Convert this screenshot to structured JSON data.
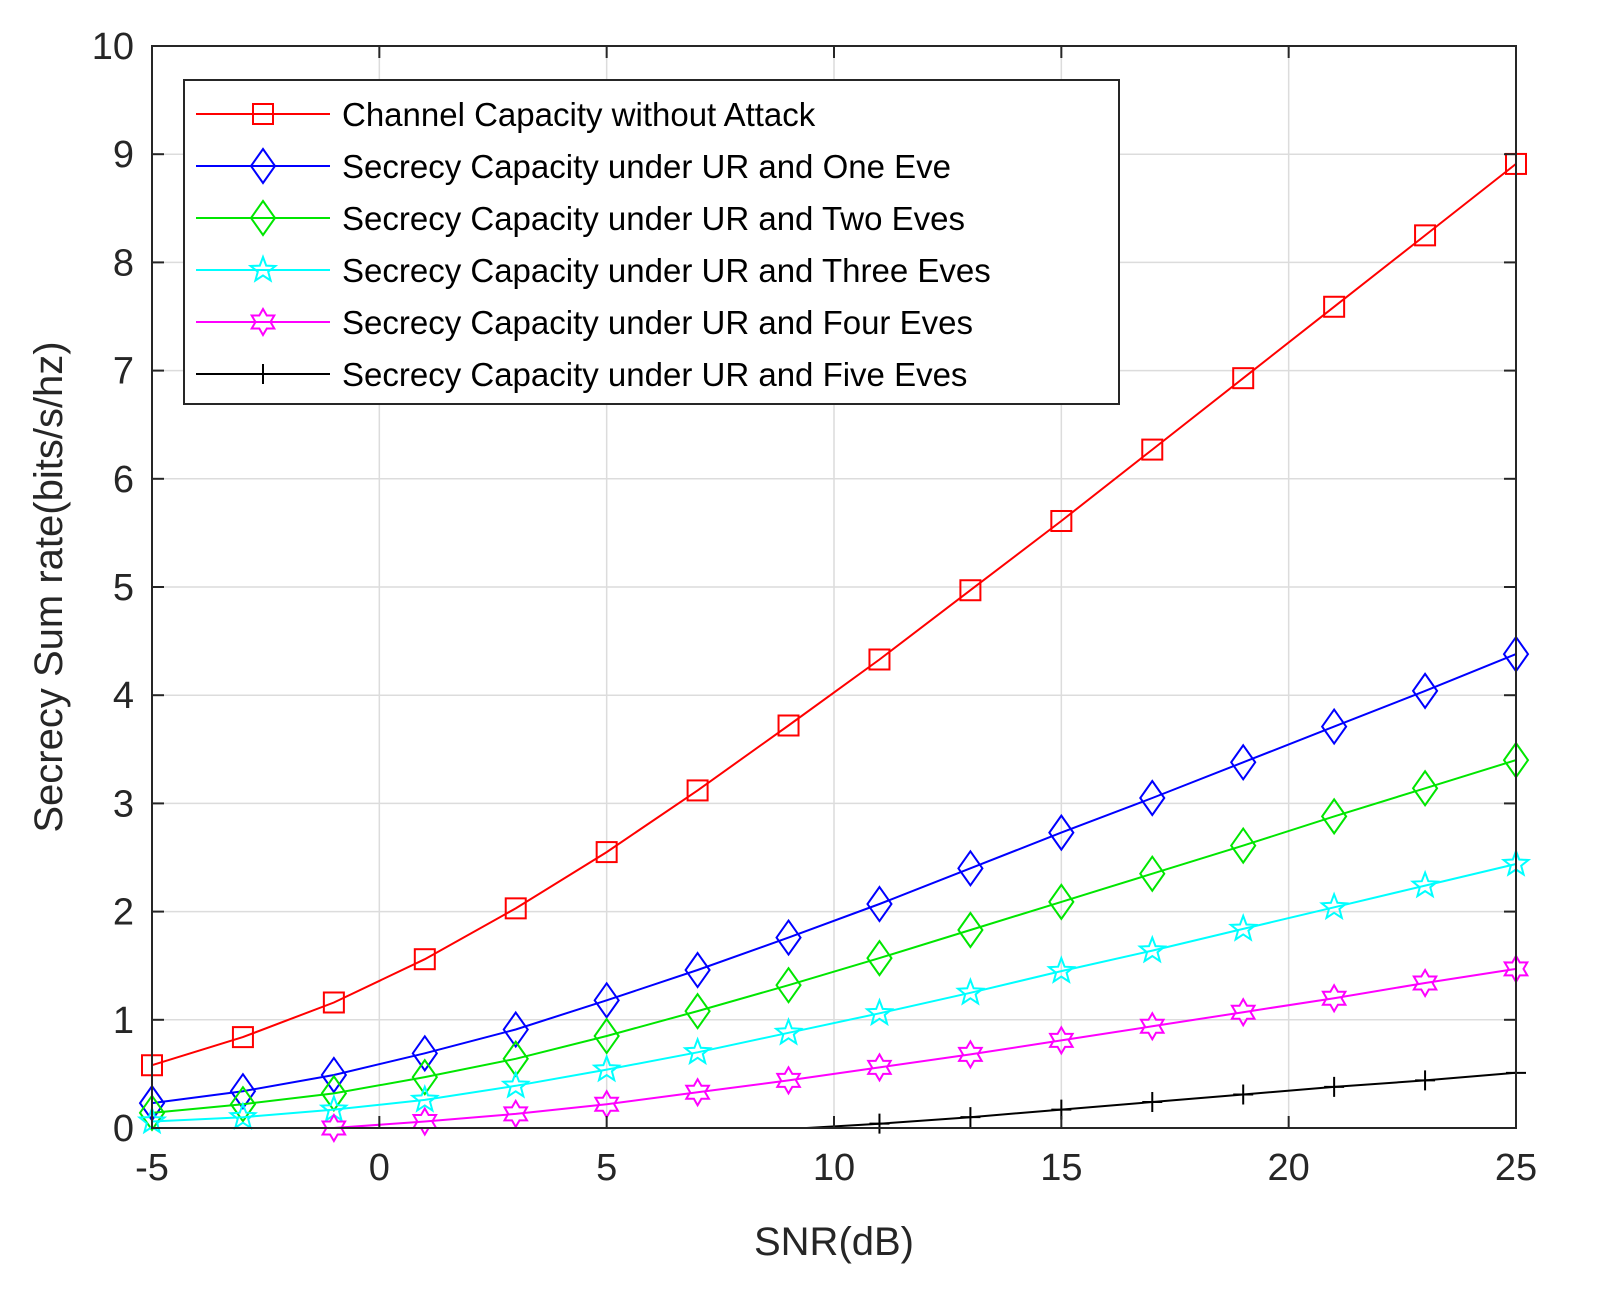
{
  "chart_data": {
    "type": "line",
    "xlabel": "SNR(dB)",
    "ylabel": "Secrecy Sum rate(bits/s/hz)",
    "xlim": [
      -5,
      25
    ],
    "ylim": [
      0,
      10
    ],
    "xticks": [
      "-5",
      "0",
      "5",
      "10",
      "15",
      "20",
      "25"
    ],
    "yticks": [
      "0",
      "1",
      "2",
      "3",
      "4",
      "5",
      "6",
      "7",
      "8",
      "9",
      "10"
    ],
    "grid": true,
    "legend_position": "top-left",
    "x": [
      -5,
      -3,
      -1,
      1,
      3,
      5,
      7,
      9,
      11,
      13,
      15,
      17,
      19,
      21,
      23,
      25
    ],
    "series": [
      {
        "name": "Channel Capacity without Attack",
        "color": "#ff0000",
        "marker": "square",
        "values": [
          0.58,
          0.84,
          1.16,
          1.56,
          2.03,
          2.55,
          3.12,
          3.72,
          4.33,
          4.97,
          5.61,
          6.27,
          6.93,
          7.59,
          8.25,
          8.91
        ]
      },
      {
        "name": "Secrecy Capacity under UR and One Eve",
        "color": "#0000ff",
        "marker": "diamond",
        "values": [
          0.23,
          0.34,
          0.49,
          0.69,
          0.91,
          1.18,
          1.46,
          1.76,
          2.07,
          2.4,
          2.73,
          3.05,
          3.38,
          3.71,
          4.04,
          4.38
        ]
      },
      {
        "name": "Secrecy Capacity under UR and Two Eves",
        "color": "#00e600",
        "marker": "diamond",
        "values": [
          0.14,
          0.22,
          0.32,
          0.47,
          0.64,
          0.85,
          1.08,
          1.32,
          1.57,
          1.83,
          2.09,
          2.35,
          2.61,
          2.88,
          3.14,
          3.4
        ]
      },
      {
        "name": "Secrecy Capacity under UR and Three Eves",
        "color": "#00ffff",
        "marker": "star",
        "values": [
          0.06,
          0.1,
          0.17,
          0.26,
          0.39,
          0.54,
          0.7,
          0.88,
          1.06,
          1.25,
          1.45,
          1.64,
          1.84,
          2.04,
          2.24,
          2.44
        ]
      },
      {
        "name": "Secrecy Capacity under UR and Four Eves",
        "color": "#ff00ff",
        "marker": "hexagram",
        "values": [
          null,
          null,
          0.0,
          0.06,
          0.13,
          0.22,
          0.33,
          0.44,
          0.56,
          0.68,
          0.81,
          0.94,
          1.07,
          1.2,
          1.34,
          1.47
        ]
      },
      {
        "name": "Secrecy Capacity under UR and Five Eves",
        "color": "#000000",
        "marker": "plus",
        "x": [
          9.4,
          11,
          13,
          15,
          17,
          19,
          21,
          23,
          25
        ],
        "values": [
          0.0,
          0.04,
          0.1,
          0.17,
          0.24,
          0.31,
          0.38,
          0.44,
          0.51
        ]
      }
    ]
  }
}
